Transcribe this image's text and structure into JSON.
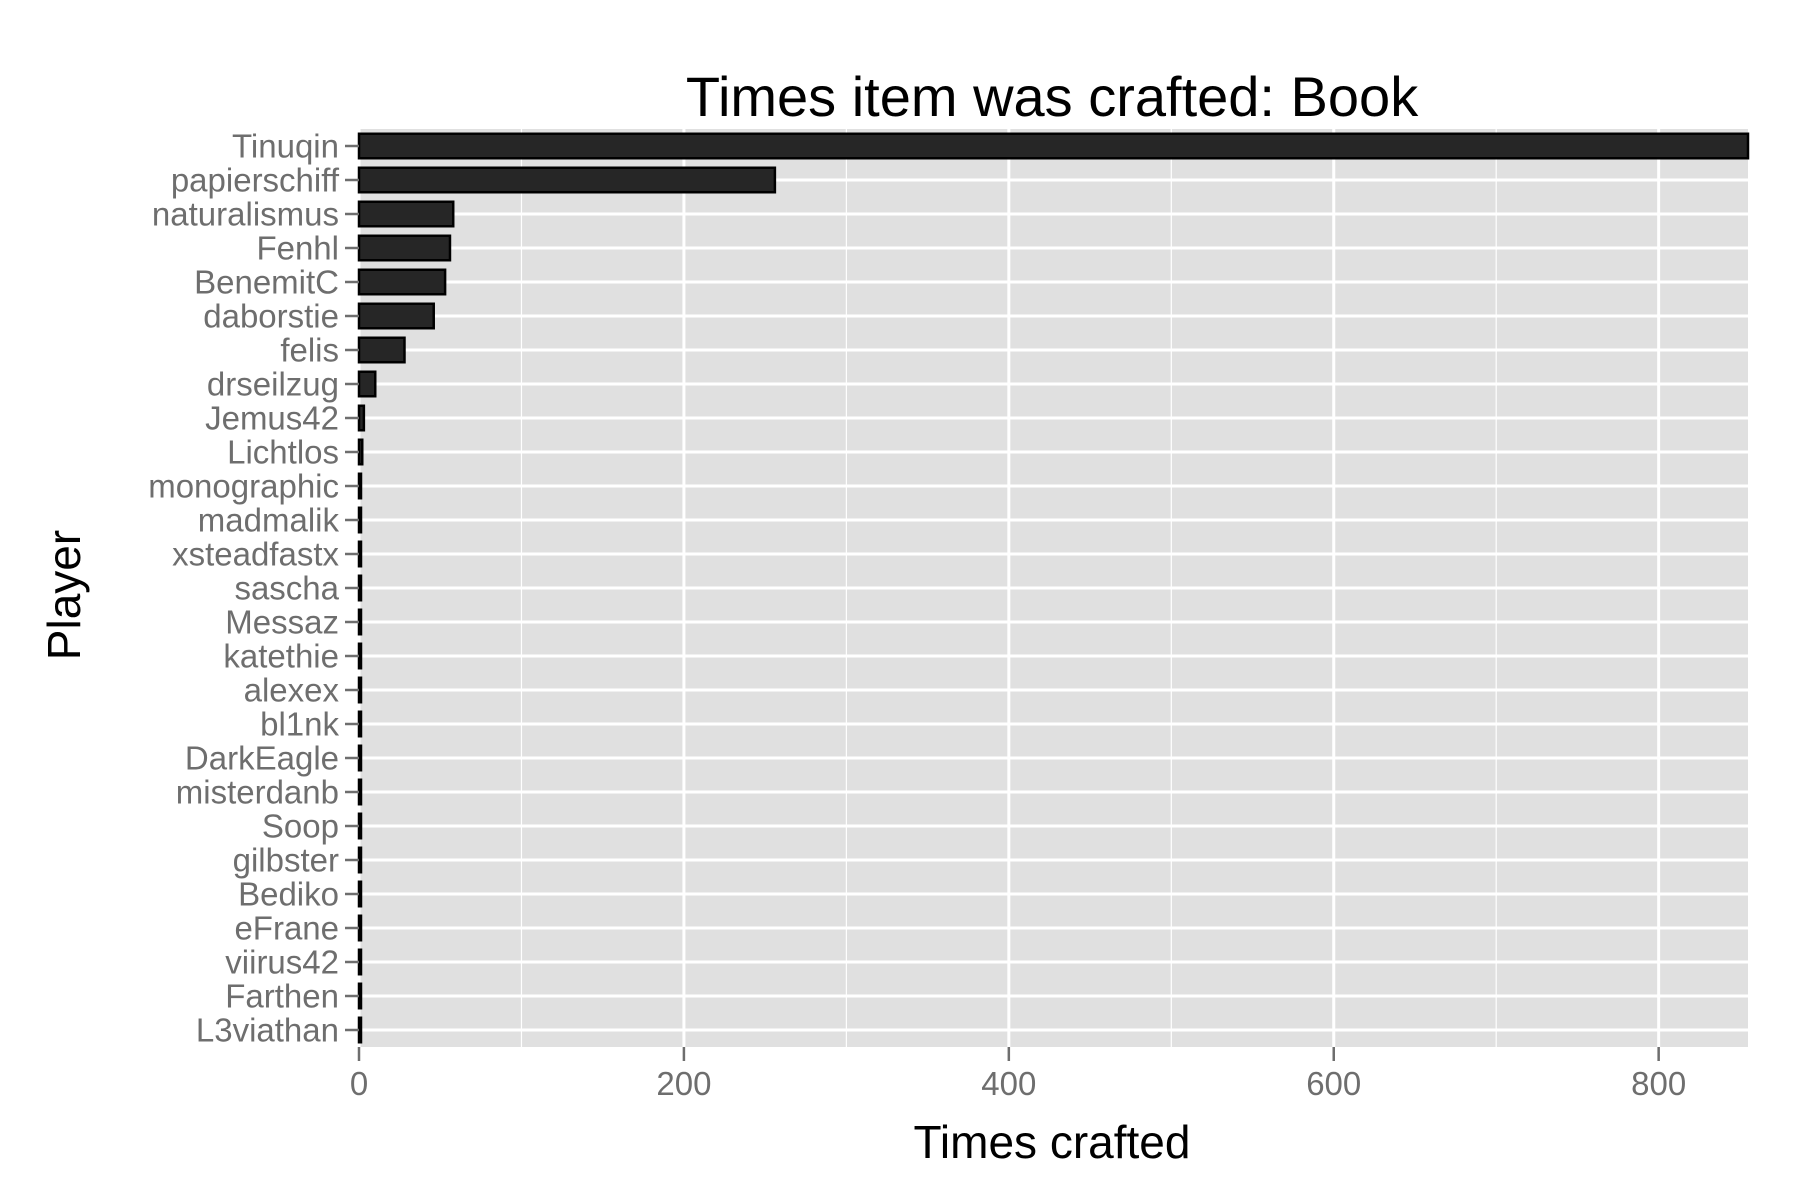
{
  "chart_data": {
    "type": "bar",
    "orientation": "horizontal",
    "title": "Times item was crafted: Book",
    "xlabel": "Times crafted",
    "ylabel": "Player",
    "xlim": [
      0,
      855
    ],
    "x_ticks": [
      0,
      200,
      400,
      600,
      800
    ],
    "x_tick_labels": [
      "0",
      "200",
      "400",
      "600",
      "800"
    ],
    "grid": true,
    "categories": [
      "Tinuqin",
      "papierschiff",
      "naturalismus",
      "Fenhl",
      "BenemitC",
      "daborstie",
      "felis",
      "drseilzug",
      "Jemus42",
      "Lichtlos",
      "monographic",
      "madmalik",
      "xsteadfastx",
      "sascha",
      "Messaz",
      "katethie",
      "alexex",
      "bl1nk",
      "DarkEagle",
      "misterdanb",
      "Soop",
      "gilbster",
      "Bediko",
      "eFrane",
      "viirus42",
      "Farthen",
      "L3viathan"
    ],
    "values": [
      855,
      256,
      58,
      56,
      53,
      46,
      28,
      10,
      3,
      2,
      1,
      1,
      1,
      1,
      1,
      1,
      1,
      1,
      1,
      1,
      1,
      1,
      1,
      1,
      1,
      1,
      1
    ],
    "colors": {
      "panel": "#e0e0e0",
      "grid": "#ffffff",
      "bar_fill": "#262626",
      "bar_outline": "#000000",
      "tick": "#6e6e6e"
    }
  }
}
